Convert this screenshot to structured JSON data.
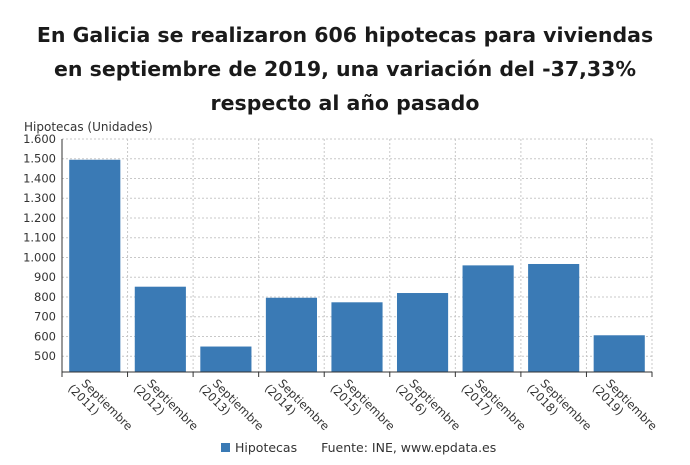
{
  "title": "En Galicia se realizaron 606 hipotecas para viviendas en septiembre de 2019, una variación del -37,33% respecto al año pasado",
  "source": "Fuente: INE, www.epdata.es",
  "colors": {
    "bar": "#3a7ab5",
    "grid": "#c8c8c8",
    "axis": "#333333"
  },
  "chart_data": {
    "type": "bar",
    "ylabel": "Hipotecas (Unidades)",
    "categories": [
      "Septiembre (2011)",
      "Septiembre (2012)",
      "Septiembre (2013)",
      "Septiembre (2014)",
      "Septiembre (2015)",
      "Septiembre (2016)",
      "Septiembre (2017)",
      "Septiembre (2018)",
      "Septiembre (2019)"
    ],
    "series": [
      {
        "name": "Hipotecas",
        "values": [
          1495,
          852,
          549,
          796,
          773,
          820,
          960,
          967,
          606
        ]
      }
    ],
    "ylim": [
      420,
      1600
    ],
    "yticks": [
      500,
      600,
      700,
      800,
      900,
      1000,
      1100,
      1200,
      1300,
      1400,
      1500,
      1600
    ],
    "ytick_labels": [
      "500",
      "600",
      "700",
      "800",
      "900",
      "1.000",
      "1.100",
      "1.200",
      "1.300",
      "1.400",
      "1.500",
      "1.600"
    ],
    "grid": true,
    "legend": "bottom"
  }
}
